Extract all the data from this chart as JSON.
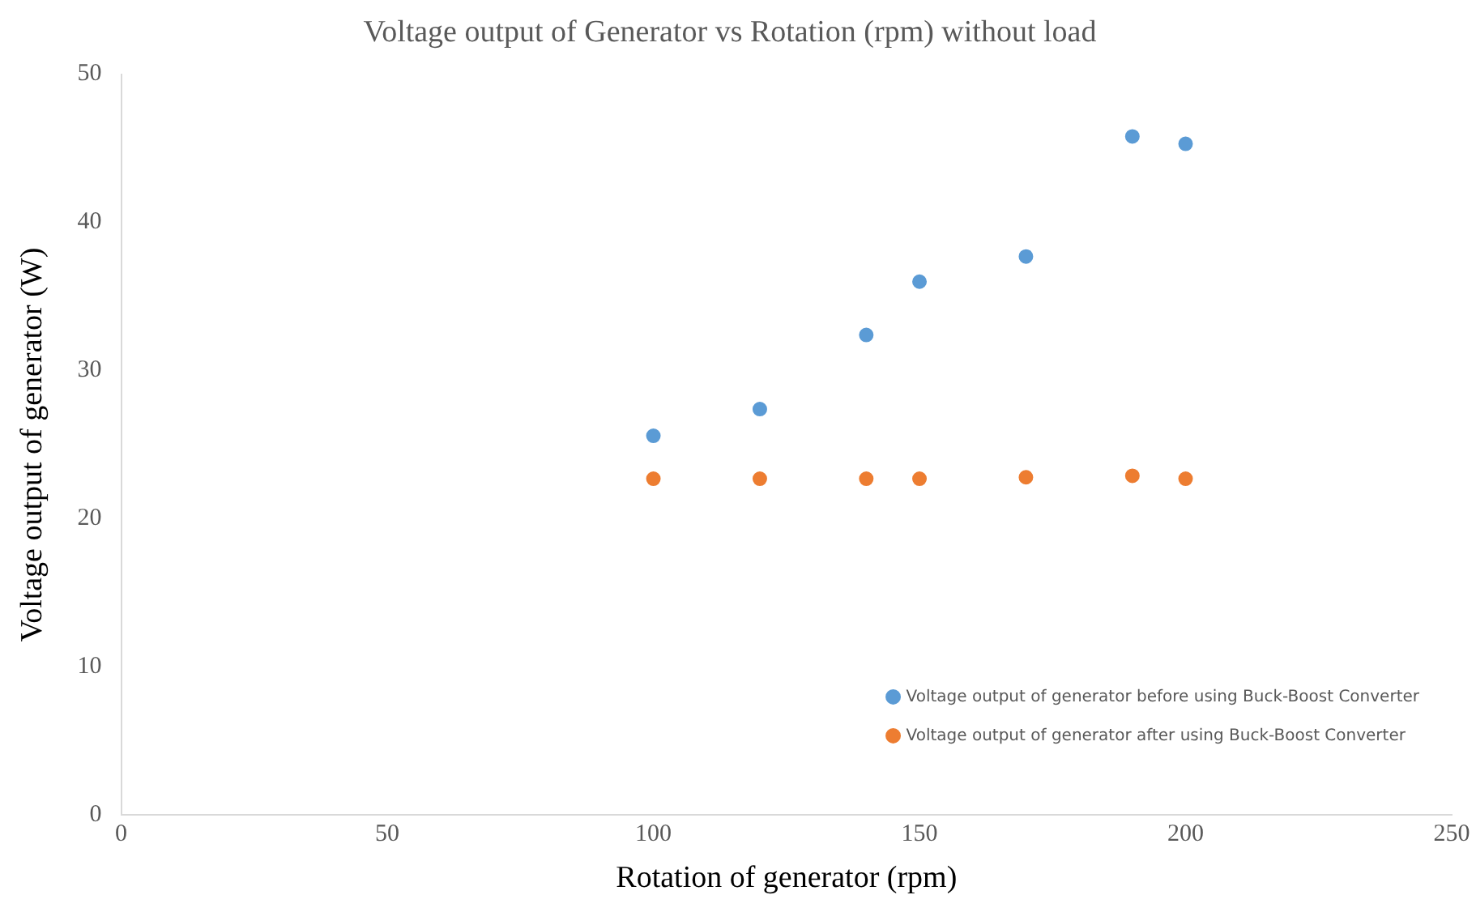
{
  "chart_data": {
    "type": "scatter",
    "title": "Voltage output of Generator vs Rotation (rpm) without load",
    "xlabel": "Rotation of generator (rpm)",
    "ylabel": "Voltage output of generator (W)",
    "x": [
      100,
      120,
      140,
      150,
      170,
      190,
      200
    ],
    "series": [
      {
        "name": "Voltage output of generator before using Buck-Boost Converter",
        "color": "#5b9bd5",
        "values": [
          25.6,
          27.4,
          32.4,
          36.0,
          37.7,
          45.8,
          45.3
        ]
      },
      {
        "name": "Voltage output of generator after using Buck-Boost Converter",
        "color": "#ed7d31",
        "values": [
          22.7,
          22.7,
          22.7,
          22.7,
          22.8,
          22.9,
          22.7
        ]
      }
    ],
    "xlim": [
      0,
      250
    ],
    "xticks": [
      0,
      50,
      100,
      150,
      200,
      250
    ],
    "ylim": [
      0,
      50
    ],
    "yticks": [
      0,
      10,
      20,
      30,
      40,
      50
    ],
    "grid": false,
    "legend": "bottom right",
    "marker": "circle"
  }
}
